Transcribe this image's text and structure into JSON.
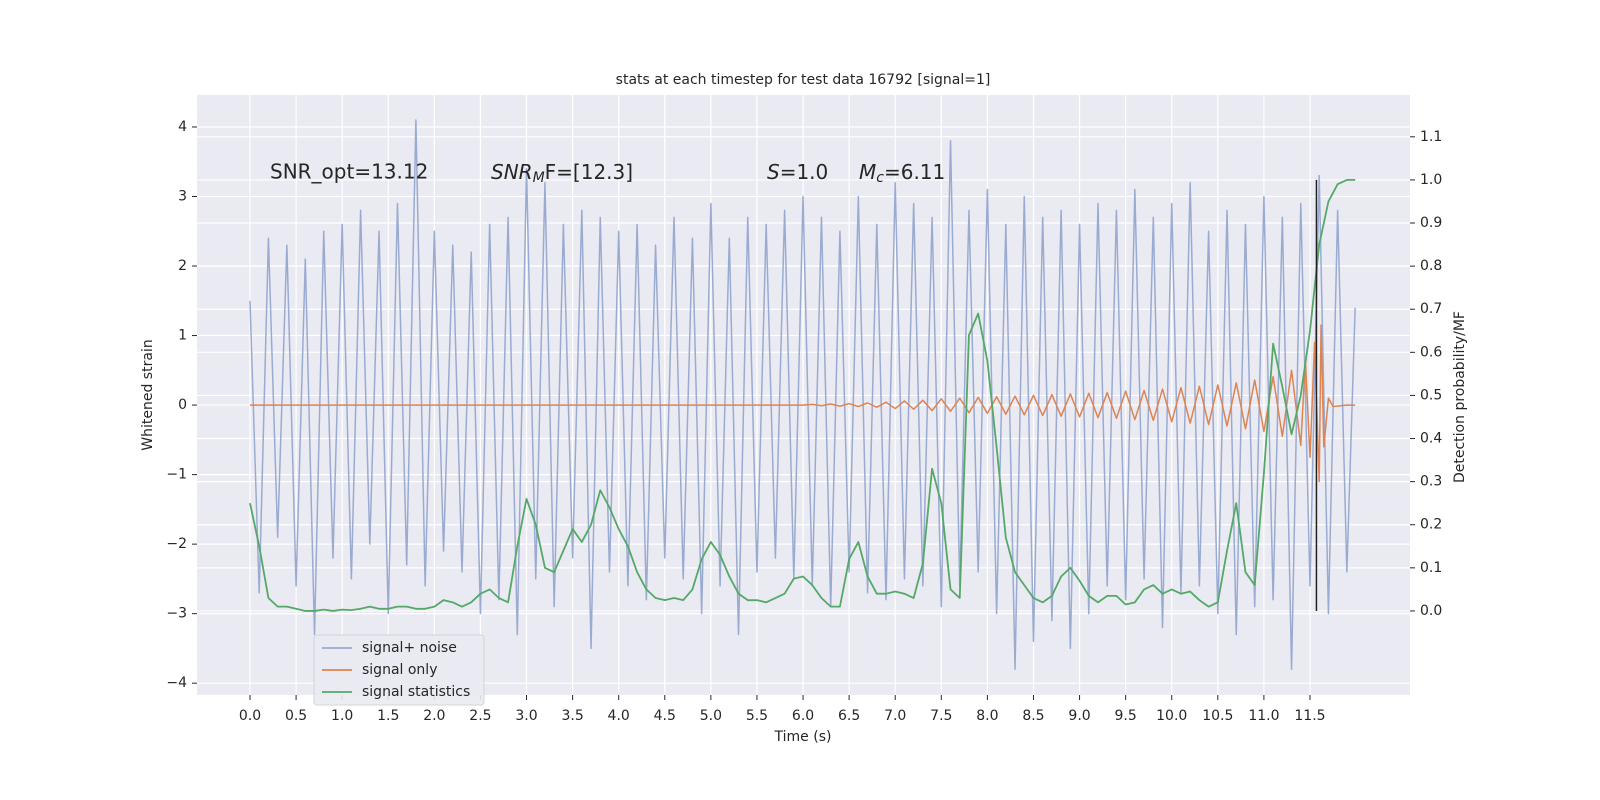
{
  "chart_data": {
    "type": "line",
    "title": "stats at each timestep for test data 16792 [signal=1]",
    "xlabel": "Time (s)",
    "ylabel": "Whitened strain",
    "y2label": "Detection probability/MF",
    "annotations": [
      {
        "text": "SNR_opt=13.12"
      },
      {
        "base": "SNR",
        "sub": "M",
        "rest": "F=[12.3]"
      },
      {
        "base": "S",
        "rest": "=1.0"
      },
      {
        "base": "M",
        "sub": "c",
        "rest": "=6.11"
      }
    ],
    "xlim": [
      -0.575,
      12.585
    ],
    "ylim": [
      -4.17,
      4.46
    ],
    "y2lim": [
      -0.195,
      1.197
    ],
    "xticks": [
      {
        "value": 0,
        "label": "0.0"
      },
      0.5,
      {
        "value": 1,
        "label": "1.0"
      },
      1.5,
      {
        "value": 2,
        "label": "2.0"
      },
      2.5,
      {
        "value": 3,
        "label": "3.0"
      },
      3.5,
      {
        "value": 4,
        "label": "4.0"
      },
      4.5,
      {
        "value": 5,
        "label": "5.0"
      },
      5.5,
      {
        "value": 6,
        "label": "6.0"
      },
      6.5,
      {
        "value": 7,
        "label": "7.0"
      },
      7.5,
      {
        "value": 8,
        "label": "8.0"
      },
      8.5,
      {
        "value": 9,
        "label": "9.0"
      },
      9.5,
      {
        "value": 10,
        "label": "10.0"
      },
      10.5,
      {
        "value": 11,
        "label": "11.0"
      },
      11.5
    ],
    "yticks": [
      {
        "value": -4,
        "label": "−4"
      },
      {
        "value": -3,
        "label": "−3"
      },
      {
        "value": -2,
        "label": "−2"
      },
      {
        "value": -1,
        "label": "−1"
      },
      0,
      1,
      2,
      3,
      4
    ],
    "y2ticks": [
      {
        "value": 0,
        "label": "0.0"
      },
      0.1,
      0.2,
      0.3,
      0.4,
      0.5,
      0.6,
      0.7,
      0.8,
      0.9,
      {
        "value": 1,
        "label": "1.0"
      },
      1.1
    ],
    "grid": true,
    "legend": "lower left",
    "x": [
      0,
      0.1,
      0.2,
      0.3,
      0.4,
      0.5,
      0.6,
      0.7,
      0.8,
      0.9,
      1,
      1.1,
      1.2,
      1.3,
      1.4,
      1.5,
      1.6,
      1.7,
      1.8,
      1.9,
      2,
      2.1,
      2.2,
      2.3,
      2.4,
      2.5,
      2.6,
      2.7,
      2.8,
      2.9,
      3,
      3.1,
      3.2,
      3.3,
      3.4,
      3.5,
      3.6,
      3.7,
      3.8,
      3.9,
      4,
      4.1,
      4.2,
      4.3,
      4.4,
      4.5,
      4.6,
      4.7,
      4.8,
      4.9,
      5,
      5.1,
      5.2,
      5.3,
      5.4,
      5.5,
      5.6,
      5.7,
      5.8,
      5.9,
      6,
      6.1,
      6.2,
      6.3,
      6.4,
      6.5,
      6.6,
      6.7,
      6.8,
      6.9,
      7,
      7.1,
      7.2,
      7.3,
      7.4,
      7.5,
      7.6,
      7.7,
      7.8,
      7.9,
      8,
      8.1,
      8.2,
      8.3,
      8.4,
      8.5,
      8.6,
      8.7,
      8.8,
      8.9,
      9,
      9.1,
      9.2,
      9.3,
      9.4,
      9.5,
      9.6,
      9.7,
      9.8,
      9.9,
      10,
      10.1,
      10.2,
      10.3,
      10.4,
      10.5,
      10.6,
      10.7,
      10.8,
      10.9,
      11,
      11.1,
      11.2,
      11.3,
      11.4,
      11.5,
      11.6,
      11.7,
      11.8,
      11.9,
      11.99
    ],
    "series": [
      {
        "name": "signal+ noise",
        "color": "#9aabd1",
        "values": [
          1.5,
          -2.7,
          2.4,
          -1.9,
          2.3,
          -2.6,
          2.1,
          -3.3,
          2.5,
          -2.2,
          2.6,
          -2.5,
          2.8,
          -2.0,
          2.5,
          -3.0,
          2.9,
          -2.3,
          4.1,
          -2.6,
          2.5,
          -2.1,
          2.3,
          -2.4,
          2.2,
          -3.0,
          2.6,
          -2.8,
          2.7,
          -3.3,
          3.4,
          -2.5,
          3.2,
          -2.9,
          2.6,
          -2.2,
          2.8,
          -3.5,
          2.7,
          -2.4,
          2.5,
          -2.6,
          2.6,
          -2.8,
          2.3,
          -2.2,
          2.7,
          -2.5,
          2.4,
          -3.0,
          2.9,
          -2.6,
          2.4,
          -3.3,
          2.7,
          -2.4,
          2.6,
          -2.2,
          2.8,
          -2.5,
          3.0,
          -2.6,
          2.7,
          -2.9,
          2.5,
          -2.4,
          3.0,
          -2.7,
          2.6,
          -2.8,
          3.2,
          -2.5,
          2.9,
          -2.6,
          2.7,
          -2.9,
          3.8,
          -2.6,
          2.8,
          -2.4,
          3.1,
          -3.0,
          2.6,
          -3.8,
          3.0,
          -3.4,
          2.7,
          -3.1,
          2.8,
          -3.5,
          2.6,
          -3.0,
          2.9,
          -2.6,
          2.8,
          -2.8,
          3.1,
          -2.5,
          2.7,
          -3.2,
          2.9,
          -2.7,
          3.2,
          -2.6,
          2.5,
          -3.0,
          2.8,
          -3.3,
          2.6,
          -2.9,
          3.0,
          -2.8,
          2.7,
          -3.8,
          2.9,
          -2.6,
          3.3,
          -3.0,
          2.8,
          -2.4,
          1.4
        ]
      },
      {
        "name": "signal only",
        "color": "#dd8452",
        "x": [
          0,
          6.0,
          6.1,
          6.2,
          6.3,
          6.4,
          6.5,
          6.6,
          6.7,
          6.8,
          6.9,
          7.0,
          7.1,
          7.2,
          7.3,
          7.4,
          7.5,
          7.6,
          7.7,
          7.8,
          7.9,
          8.0,
          8.1,
          8.2,
          8.3,
          8.4,
          8.5,
          8.6,
          8.7,
          8.8,
          8.9,
          9.0,
          9.1,
          9.2,
          9.3,
          9.4,
          9.5,
          9.6,
          9.7,
          9.8,
          9.9,
          10.0,
          10.1,
          10.2,
          10.3,
          10.4,
          10.5,
          10.6,
          10.7,
          10.8,
          10.9,
          11.0,
          11.1,
          11.2,
          11.3,
          11.4,
          11.45,
          11.5,
          11.55,
          11.6,
          11.62,
          11.65,
          11.7,
          11.75,
          11.9,
          11.99
        ],
        "values": [
          0,
          0,
          0.01,
          -0.01,
          0.015,
          -0.015,
          0.02,
          -0.02,
          0.03,
          -0.03,
          0.04,
          -0.05,
          0.06,
          -0.06,
          0.07,
          -0.08,
          0.09,
          -0.09,
          0.1,
          -0.11,
          0.11,
          -0.12,
          0.12,
          -0.13,
          0.13,
          -0.14,
          0.14,
          -0.15,
          0.15,
          -0.16,
          0.16,
          -0.17,
          0.17,
          -0.18,
          0.18,
          -0.19,
          0.2,
          -0.21,
          0.21,
          -0.22,
          0.23,
          -0.24,
          0.25,
          -0.26,
          0.27,
          -0.28,
          0.29,
          -0.3,
          0.32,
          -0.34,
          0.36,
          -0.38,
          0.41,
          -0.45,
          0.5,
          -0.58,
          0.65,
          -0.75,
          0.9,
          -1.1,
          1.15,
          -0.6,
          0.1,
          -0.02,
          0,
          0
        ]
      },
      {
        "name": "signal statistics",
        "color": "#55a868",
        "axis": "y2",
        "values": [
          0.25,
          0.15,
          0.03,
          0.01,
          0.01,
          0.005,
          0.0,
          0.0,
          0.003,
          0.0,
          0.003,
          0.002,
          0.005,
          0.01,
          0.005,
          0.005,
          0.01,
          0.01,
          0.005,
          0.005,
          0.01,
          0.025,
          0.02,
          0.01,
          0.02,
          0.04,
          0.05,
          0.03,
          0.02,
          0.15,
          0.26,
          0.2,
          0.1,
          0.09,
          0.14,
          0.19,
          0.16,
          0.2,
          0.28,
          0.24,
          0.19,
          0.15,
          0.09,
          0.05,
          0.03,
          0.025,
          0.03,
          0.025,
          0.05,
          0.12,
          0.16,
          0.13,
          0.08,
          0.04,
          0.025,
          0.025,
          0.02,
          0.03,
          0.04,
          0.075,
          0.08,
          0.06,
          0.03,
          0.01,
          0.01,
          0.12,
          0.16,
          0.08,
          0.04,
          0.04,
          0.045,
          0.04,
          0.03,
          0.11,
          0.33,
          0.25,
          0.05,
          0.03,
          0.64,
          0.69,
          0.58,
          0.38,
          0.17,
          0.09,
          0.06,
          0.03,
          0.02,
          0.035,
          0.08,
          0.1,
          0.07,
          0.035,
          0.02,
          0.035,
          0.035,
          0.015,
          0.02,
          0.05,
          0.06,
          0.04,
          0.05,
          0.04,
          0.045,
          0.025,
          0.01,
          0.02,
          0.14,
          0.25,
          0.09,
          0.06,
          0.32,
          0.62,
          0.52,
          0.41,
          0.5,
          0.65,
          0.85,
          0.95,
          0.99,
          1.0,
          1.0
        ]
      }
    ],
    "vlines": [
      {
        "x": 11.57,
        "axis": "y2",
        "ymin": 0,
        "ymax": 1,
        "color": "#222222"
      }
    ]
  }
}
